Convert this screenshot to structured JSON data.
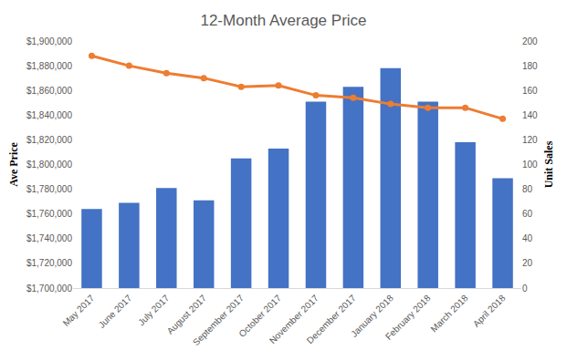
{
  "chart_data": {
    "type": "bar",
    "title": "12-Month Average Price",
    "y_label": "Ave Price",
    "y2_label": "Unit Sales",
    "categories": [
      "May 2017",
      "June 2017",
      "July 2017",
      "August 2017",
      "September 2017",
      "October 2017",
      "November 2017",
      "December 2017",
      "January 2018",
      "February 2018",
      "March 2018",
      "April 2018"
    ],
    "series": [
      {
        "type": "bar",
        "axis": "y2",
        "color": "#4472c4",
        "values": [
          64,
          69,
          81,
          71,
          105,
          113,
          151,
          163,
          178,
          151,
          118,
          89
        ]
      },
      {
        "type": "line",
        "color": "#ed7d31",
        "marker": "circle",
        "values": [
          1888000,
          1880000,
          1874000,
          1870000,
          1863000,
          1864000,
          1856000,
          1854000,
          1849000,
          1846000,
          1846000,
          1837000
        ]
      }
    ],
    "ylim": [
      1700000,
      1900000
    ],
    "yticks": [
      {
        "value": 1700000,
        "label": "$1,700,000"
      },
      {
        "value": 1720000,
        "label": "$1,720,000"
      },
      {
        "value": 1740000,
        "label": "$1,740,000"
      },
      {
        "value": 1760000,
        "label": "$1,760,000"
      },
      {
        "value": 1780000,
        "label": "$1,780,000"
      },
      {
        "value": 1800000,
        "label": "$1,800,000"
      },
      {
        "value": 1820000,
        "label": "$1,820,000"
      },
      {
        "value": 1840000,
        "label": "$1,840,000"
      },
      {
        "value": 1860000,
        "label": "$1,860,000"
      },
      {
        "value": 1880000,
        "label": "$1,880,000"
      },
      {
        "value": 1900000,
        "label": "$1,900,000"
      }
    ],
    "y2lim": [
      0,
      200
    ],
    "y2ticks": [
      0,
      20,
      40,
      60,
      80,
      100,
      120,
      140,
      160,
      180,
      200
    ],
    "grid": false
  }
}
